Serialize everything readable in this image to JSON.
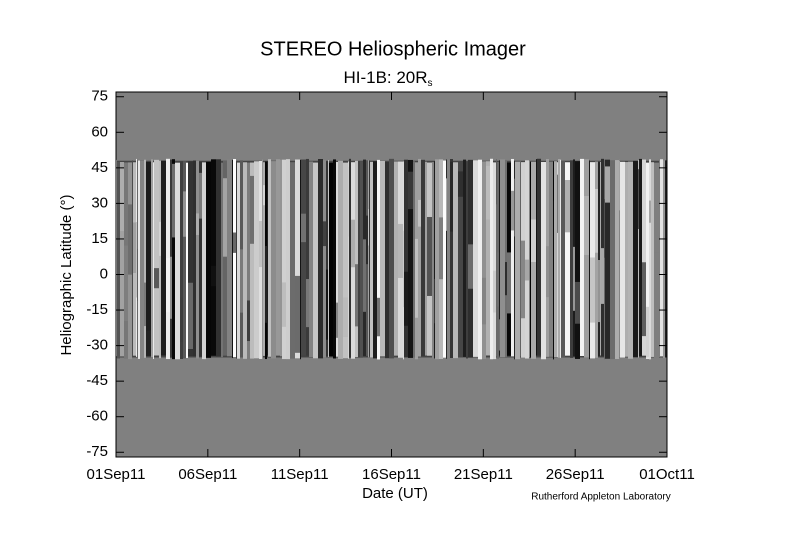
{
  "chart_data": {
    "type": "heliospheric-map",
    "title": "STEREO Heliospheric Imager",
    "subtitle": "HI-1B: 20R",
    "subtitle_subscript": "s",
    "x_label": "Date (UT)",
    "y_label": "Heliographic Latitude (°)",
    "credit": "Rutherford Appleton Laboratory",
    "xlim": [
      "2011-09-01",
      "2011-10-01"
    ],
    "xticks": [
      {
        "value": "2011-09-01",
        "label": "01Sep11"
      },
      {
        "value": "2011-09-06",
        "label": "06Sep11"
      },
      {
        "value": "2011-09-11",
        "label": "11Sep11"
      },
      {
        "value": "2011-09-16",
        "label": "16Sep11"
      },
      {
        "value": "2011-09-21",
        "label": "21Sep11"
      },
      {
        "value": "2011-09-26",
        "label": "26Sep11"
      },
      {
        "value": "2011-10-01",
        "label": "01Oct11"
      }
    ],
    "ylim": [
      -77,
      77
    ],
    "yticks": [
      -75,
      -60,
      -45,
      -30,
      -15,
      0,
      15,
      30,
      45,
      60,
      75
    ],
    "band_lat": [
      -35,
      48
    ],
    "background_color": "#808080"
  }
}
